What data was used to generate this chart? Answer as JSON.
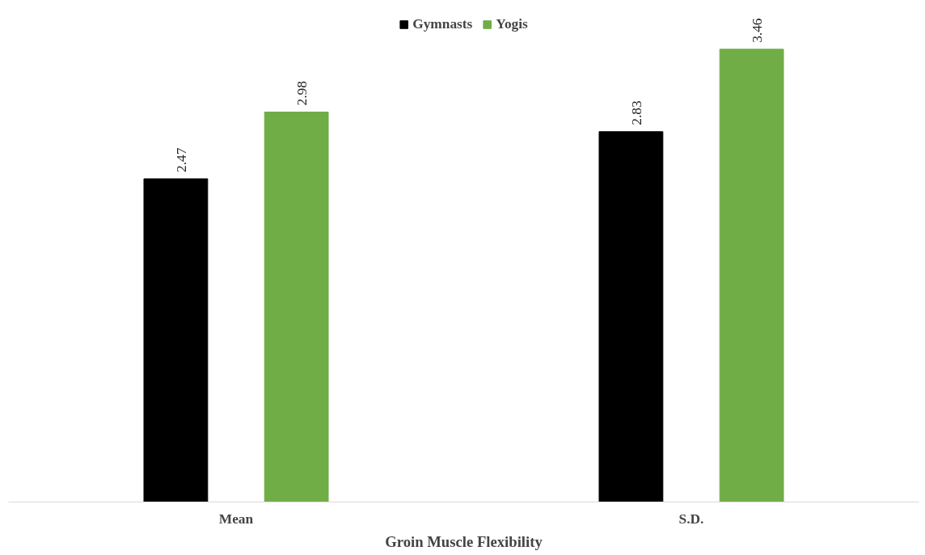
{
  "chart_data": {
    "type": "bar",
    "xlabel": "Groin Muscle Flexibility",
    "categories": [
      "Mean",
      "S.D."
    ],
    "series": [
      {
        "name": "Gymnasts",
        "color": "#000000",
        "values": [
          2.47,
          2.83
        ]
      },
      {
        "name": "Yogis",
        "color": "#70ad47",
        "values": [
          2.98,
          3.46
        ]
      }
    ],
    "data_labels": true,
    "legend": "top",
    "grid": false,
    "tick_labels": "x"
  }
}
